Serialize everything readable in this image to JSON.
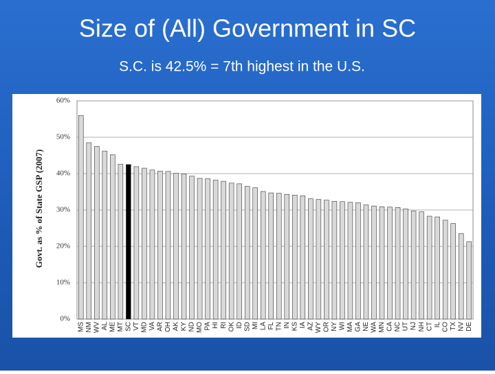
{
  "chart_data": {
    "type": "bar",
    "title": "Size of (All) Government in SC",
    "subtitle": "S.C. is 42.5% = 7th highest in the U.S.",
    "y_label": "Govt. as % of State GSP (2007)",
    "categories": [
      "MS",
      "NM",
      "WV",
      "AL",
      "ME",
      "MT",
      "SC",
      "VT",
      "MD",
      "VA",
      "AR",
      "OH",
      "AK",
      "KY",
      "ND",
      "MO",
      "PA",
      "HI",
      "RI",
      "OK",
      "ID",
      "SD",
      "MI",
      "LA",
      "FL",
      "TN",
      "IN",
      "KS",
      "IA",
      "AZ",
      "WY",
      "OR",
      "NY",
      "WI",
      "MA",
      "GA",
      "NE",
      "WA",
      "MN",
      "CA",
      "NC",
      "UT",
      "NJ",
      "NH",
      "CT",
      "IL",
      "CO",
      "TX",
      "NV",
      "DE"
    ],
    "values": [
      56,
      48.5,
      47.5,
      46.2,
      45.2,
      42.6,
      42.5,
      41.9,
      41.5,
      41,
      40.7,
      40.6,
      40.1,
      39.9,
      39.3,
      38.7,
      38.6,
      38.2,
      37.9,
      37.4,
      37.2,
      36.5,
      36.1,
      35.1,
      34.7,
      34.6,
      34.3,
      34.1,
      33.9,
      33.1,
      32.9,
      32.7,
      32.4,
      32.3,
      32.1,
      32,
      31.4,
      31.1,
      30.9,
      30.8,
      30.7,
      30.3,
      29.7,
      29.5,
      28.3,
      28.1,
      27.2,
      26.3,
      23.5,
      21.3
    ],
    "colors": [
      "#d9d9d9",
      "#d9d9d9",
      "#d9d9d9",
      "#d9d9d9",
      "#d9d9d9",
      "#d9d9d9",
      "#000000",
      "#d9d9d9",
      "#d9d9d9",
      "#d9d9d9",
      "#d9d9d9",
      "#d9d9d9",
      "#d9d9d9",
      "#d9d9d9",
      "#d9d9d9",
      "#d9d9d9",
      "#d9d9d9",
      "#d9d9d9",
      "#d9d9d9",
      "#d9d9d9",
      "#d9d9d9",
      "#d9d9d9",
      "#d9d9d9",
      "#d9d9d9",
      "#d9d9d9",
      "#d9d9d9",
      "#d9d9d9",
      "#d9d9d9",
      "#d9d9d9",
      "#d9d9d9",
      "#d9d9d9",
      "#d9d9d9",
      "#d9d9d9",
      "#d9d9d9",
      "#d9d9d9",
      "#d9d9d9",
      "#d9d9d9",
      "#d9d9d9",
      "#d9d9d9",
      "#d9d9d9",
      "#d9d9d9",
      "#d9d9d9",
      "#d9d9d9",
      "#d9d9d9",
      "#d9d9d9",
      "#d9d9d9",
      "#d9d9d9",
      "#d9d9d9",
      "#d9d9d9",
      "#d9d9d9"
    ],
    "ylim": [
      0,
      60
    ],
    "yticks": [
      {
        "value": 0,
        "label": "0%"
      },
      {
        "value": 10,
        "label": "10%"
      },
      {
        "value": 20,
        "label": "20%"
      },
      {
        "value": 30,
        "label": "30%"
      },
      {
        "value": 40,
        "label": "40%"
      },
      {
        "value": 50,
        "label": "50%"
      },
      {
        "value": 60,
        "label": "60%"
      }
    ],
    "grid": true
  }
}
